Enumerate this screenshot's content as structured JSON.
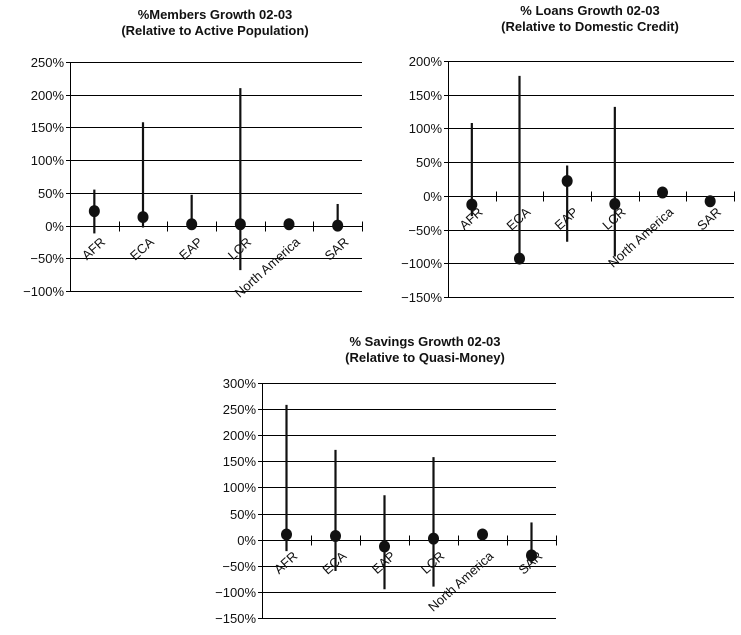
{
  "chart_data": [
    {
      "type": "scatter",
      "title": "%Members Growth 02-03",
      "subtitle": "(Relative to Active Population)",
      "categories": [
        "AFR",
        "ECA",
        "EAP",
        "LCR",
        "North America",
        "SAR"
      ],
      "ylim": [
        -100,
        250
      ],
      "yticks": [
        -100,
        -50,
        0,
        50,
        100,
        150,
        200,
        250
      ],
      "ytick_labels": [
        "−100%",
        "−50%",
        "0%",
        "50%",
        "100%",
        "150%",
        "200%",
        "250%"
      ],
      "grid": true,
      "series": [
        {
          "values": [
            22,
            13,
            2,
            2,
            2,
            0
          ],
          "low": [
            -12,
            -3,
            -3,
            -68,
            -3,
            -5
          ],
          "high": [
            55,
            158,
            47,
            210,
            3,
            33
          ]
        }
      ]
    },
    {
      "type": "scatter",
      "title": "% Loans Growth 02-03",
      "subtitle": "(Relative to Domestic Credit)",
      "categories": [
        "AFR",
        "ECA",
        "EAP",
        "LCR",
        "North America",
        "SAR"
      ],
      "ylim": [
        -150,
        200
      ],
      "yticks": [
        -150,
        -100,
        -50,
        0,
        50,
        100,
        150,
        200
      ],
      "ytick_labels": [
        "−150%",
        "−100%",
        "−50%",
        "0%",
        "50%",
        "100%",
        "150%",
        "200%"
      ],
      "grid": true,
      "series": [
        {
          "values": [
            -13,
            -93,
            22,
            -12,
            5,
            -8
          ],
          "low": [
            -30,
            -97,
            -68,
            -90,
            2,
            -12
          ],
          "high": [
            108,
            178,
            45,
            132,
            8,
            -4
          ]
        }
      ]
    },
    {
      "type": "scatter",
      "title": "% Savings Growth 02-03",
      "subtitle": "(Relative to Quasi-Money)",
      "categories": [
        "AFR",
        "ECA",
        "EAP",
        "LCR",
        "North America",
        "SAR"
      ],
      "ylim": [
        -150,
        300
      ],
      "yticks": [
        -150,
        -100,
        -50,
        0,
        50,
        100,
        150,
        200,
        250,
        300
      ],
      "ytick_labels": [
        "−150%",
        "−100%",
        "−50%",
        "0%",
        "50%",
        "100%",
        "150%",
        "200%",
        "250%",
        "300%"
      ],
      "grid": true,
      "series": [
        {
          "values": [
            10,
            7,
            -13,
            2,
            10,
            -30
          ],
          "low": [
            -22,
            -60,
            -95,
            -90,
            6,
            -45
          ],
          "high": [
            258,
            172,
            85,
            158,
            13,
            33
          ]
        }
      ]
    }
  ]
}
